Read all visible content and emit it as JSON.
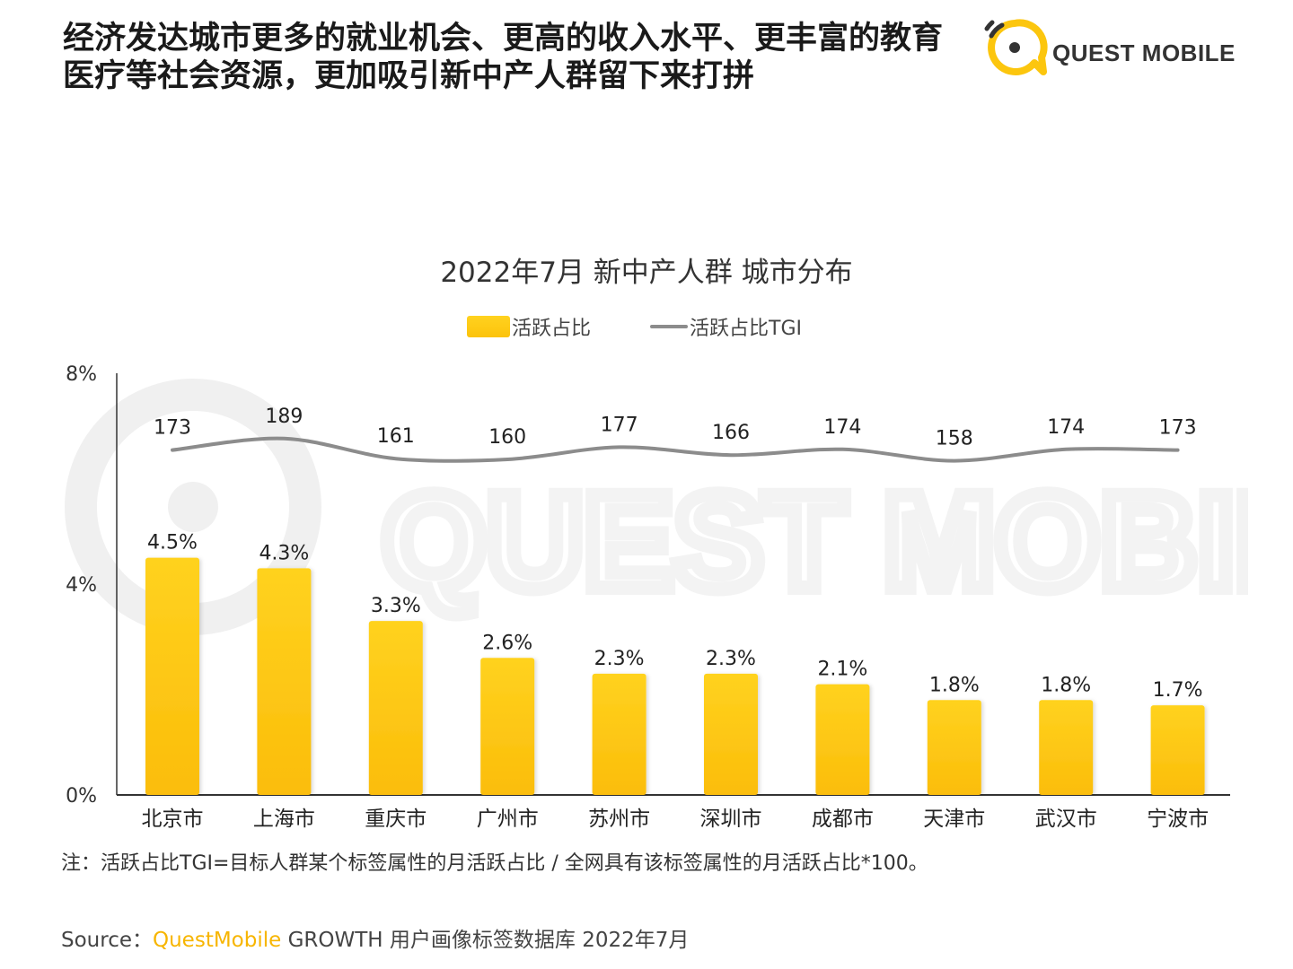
{
  "headline": {
    "line1": "经济发达城市更多的就业机会、更高的收入水平、更丰富的教育",
    "line2": "医疗等社会资源，更加吸引新中产人群留下来打拼"
  },
  "logo": {
    "text": "QUEST MOBILE"
  },
  "watermark": {
    "text": "QUEST MOBILE"
  },
  "colors": {
    "bar": "#fcc60e",
    "line": "#8c8c8c",
    "brand": "#f7b500",
    "axis": "#333333"
  },
  "chart_data": {
    "type": "bar",
    "title": "2022年7月 新中产人群 城市分布",
    "categories": [
      "北京市",
      "上海市",
      "重庆市",
      "广州市",
      "苏州市",
      "深圳市",
      "成都市",
      "天津市",
      "武汉市",
      "宁波市"
    ],
    "series": [
      {
        "name": "活跃占比",
        "type": "bar",
        "values": [
          4.5,
          4.3,
          3.3,
          2.6,
          2.3,
          2.3,
          2.1,
          1.8,
          1.8,
          1.7
        ],
        "labels": [
          "4.5%",
          "4.3%",
          "3.3%",
          "2.6%",
          "2.3%",
          "2.3%",
          "2.1%",
          "1.8%",
          "1.8%",
          "1.7%"
        ]
      },
      {
        "name": "活跃占比TGI",
        "type": "line",
        "values": [
          173,
          189,
          161,
          160,
          177,
          166,
          174,
          158,
          174,
          173
        ]
      }
    ],
    "y_axis": {
      "ticks": [
        "0%",
        "4%",
        "8%"
      ],
      "tick_values": [
        0,
        4,
        8
      ],
      "ylim": [
        0,
        8
      ]
    },
    "legend_position": "top-center",
    "grid": false
  },
  "note": "注：活跃占比TGI=目标人群某个标签属性的月活跃占比 / 全网具有该标签属性的月活跃占比*100。",
  "source": {
    "prefix": "Source：",
    "brand": "QuestMobile",
    "suffix": " GROWTH 用户画像标签数据库 2022年7月"
  }
}
